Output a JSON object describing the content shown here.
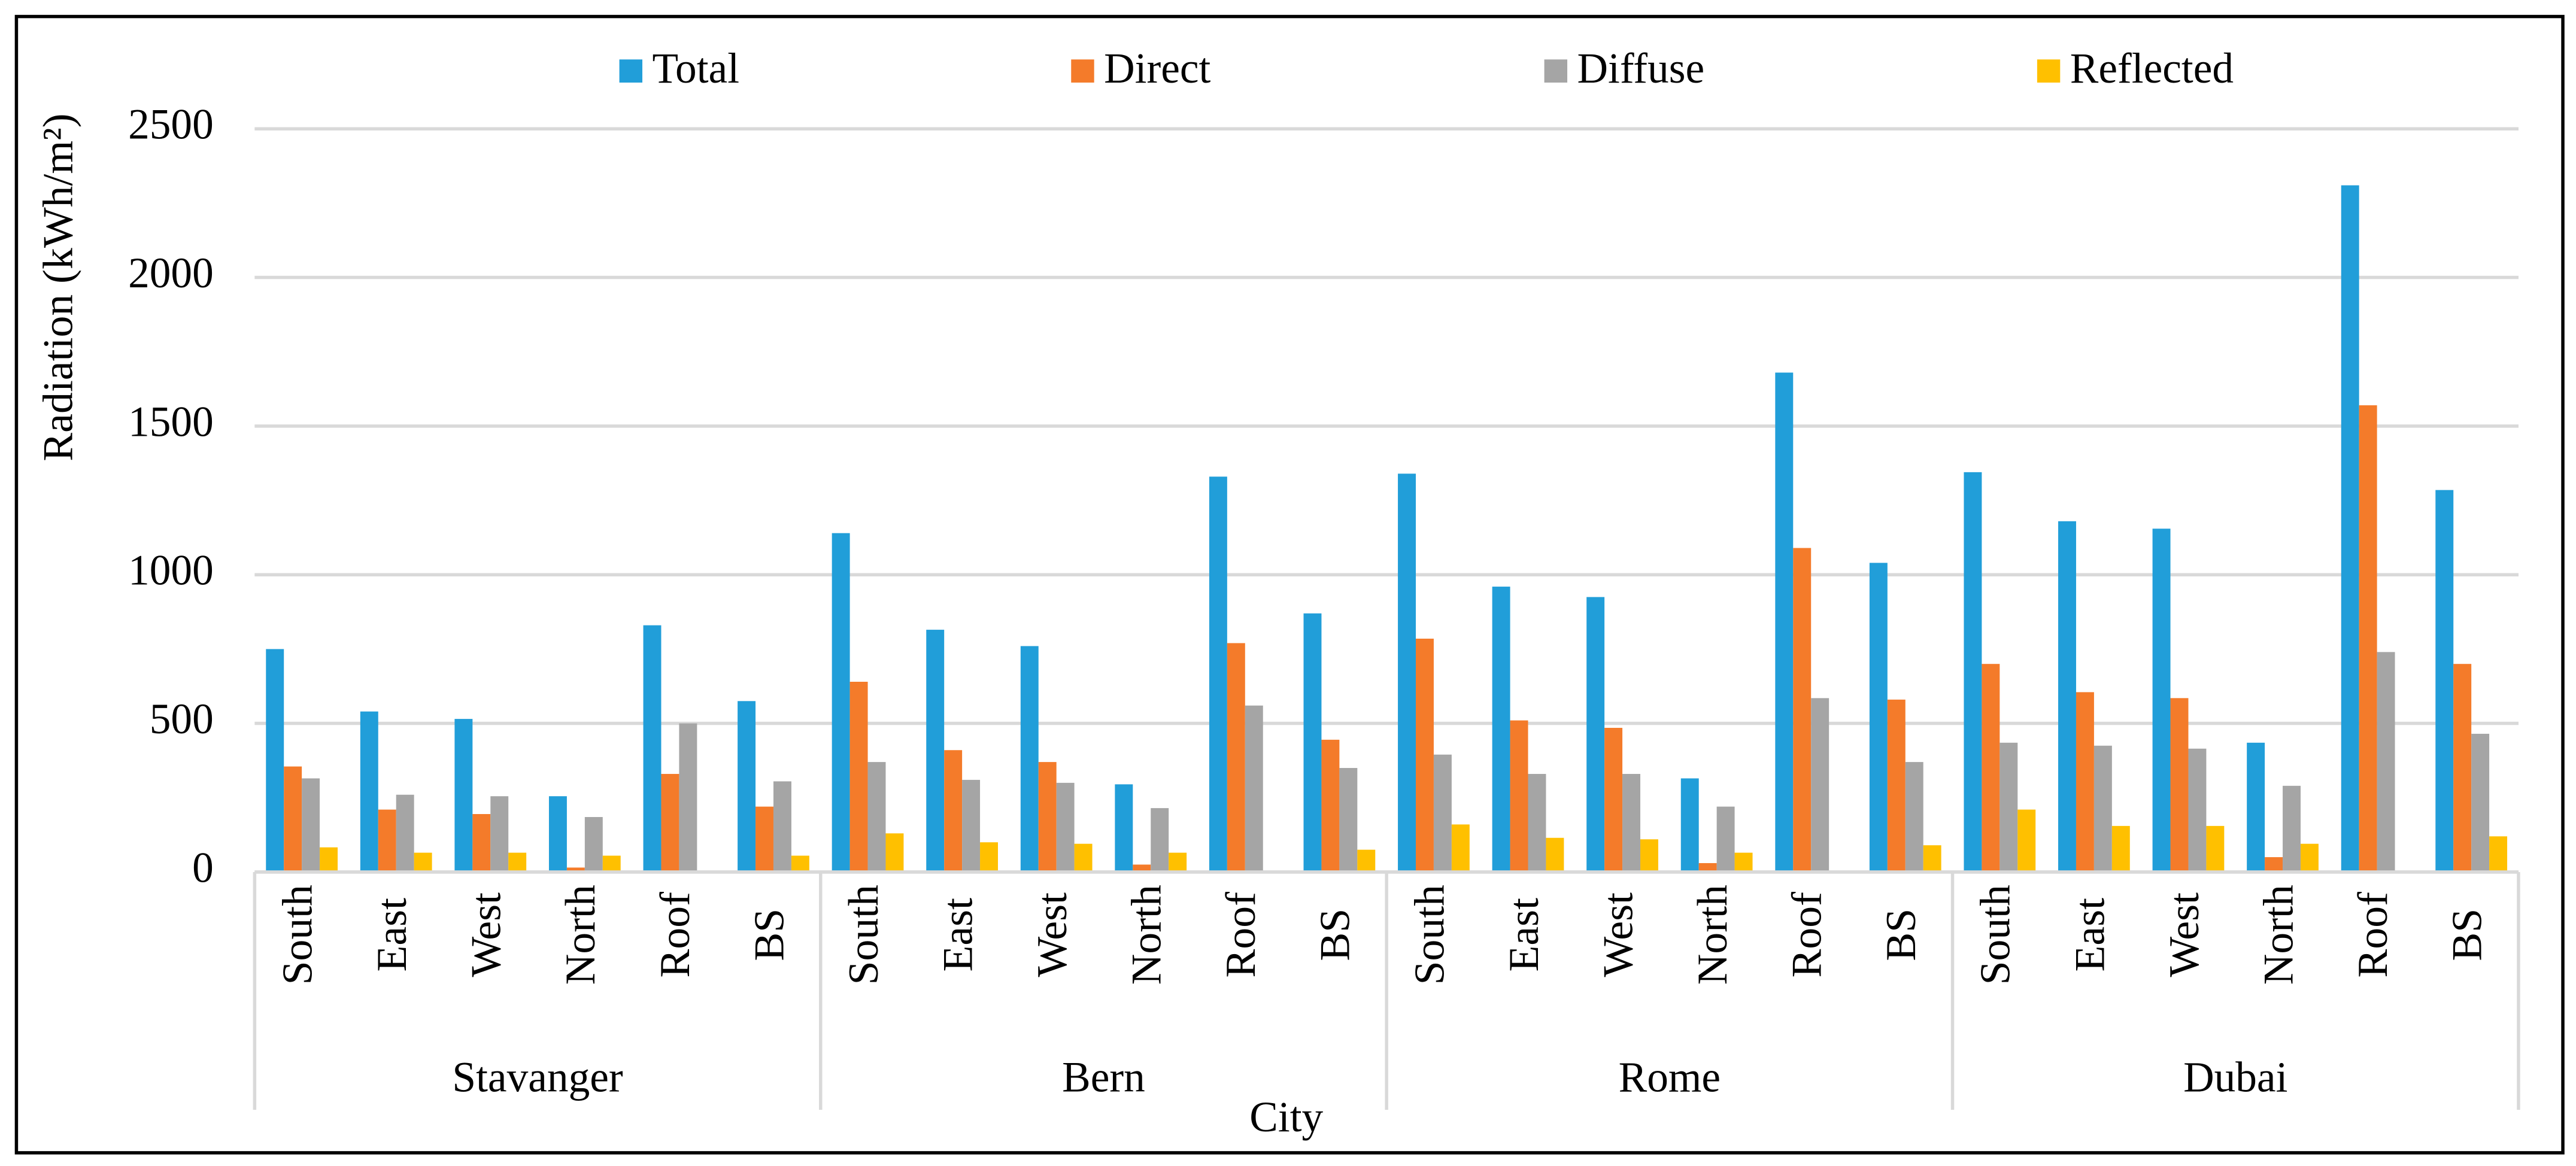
{
  "chart_data": {
    "type": "bar",
    "y_label": "Radiation (kWh/m²)",
    "x_label": "City",
    "groups": [
      {
        "label": "Stavanger",
        "categories": [
          "South",
          "East",
          "West",
          "North",
          "Roof",
          "BS"
        ]
      },
      {
        "label": "Bern",
        "categories": [
          "South",
          "East",
          "West",
          "North",
          "Roof",
          "BS"
        ]
      },
      {
        "label": "Rome",
        "categories": [
          "South",
          "East",
          "West",
          "North",
          "Roof",
          "BS"
        ]
      },
      {
        "label": "Dubai",
        "categories": [
          "South",
          "East",
          "West",
          "North",
          "Roof",
          "BS"
        ]
      }
    ],
    "series": [
      {
        "name": "Total",
        "color": "#219ed9",
        "values": [
          750,
          540,
          515,
          255,
          830,
          575,
          1140,
          815,
          760,
          295,
          1330,
          870,
          1340,
          960,
          925,
          315,
          1680,
          1040,
          1345,
          1180,
          1155,
          435,
          2310,
          1285
        ]
      },
      {
        "name": "Direct",
        "color": "#f47b2a",
        "values": [
          355,
          210,
          195,
          15,
          330,
          220,
          640,
          410,
          370,
          25,
          770,
          445,
          785,
          510,
          485,
          30,
          1090,
          580,
          700,
          605,
          585,
          50,
          1570,
          700
        ]
      },
      {
        "name": "Diffuse",
        "color": "#a5a5a5",
        "values": [
          315,
          260,
          255,
          185,
          500,
          305,
          370,
          310,
          300,
          215,
          560,
          350,
          395,
          330,
          330,
          220,
          585,
          370,
          435,
          425,
          415,
          290,
          740,
          465
        ]
      },
      {
        "name": "Reflected",
        "color": "#ffc000",
        "values": [
          83,
          65,
          65,
          55,
          0,
          55,
          130,
          100,
          95,
          65,
          0,
          75,
          160,
          115,
          110,
          65,
          0,
          90,
          210,
          155,
          155,
          95,
          0,
          120
        ]
      }
    ],
    "ylim": [
      0,
      2500
    ],
    "yticks": [
      0,
      500,
      1000,
      1500,
      2000,
      2500
    ],
    "grid": true,
    "legend": "top"
  }
}
